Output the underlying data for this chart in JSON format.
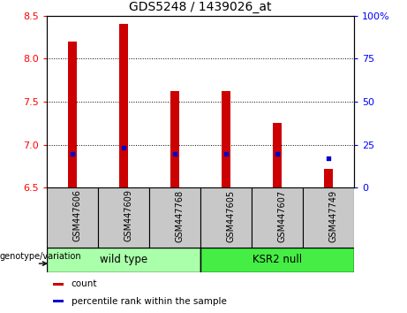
{
  "title": "GDS5248 / 1439026_at",
  "categories": [
    "GSM447606",
    "GSM447609",
    "GSM447768",
    "GSM447605",
    "GSM447607",
    "GSM447749"
  ],
  "bar_values": [
    8.2,
    8.4,
    7.62,
    7.62,
    7.25,
    6.72
  ],
  "percentile_values": [
    6.89,
    6.97,
    6.89,
    6.89,
    6.89,
    6.84
  ],
  "ylim_left": [
    6.5,
    8.5
  ],
  "ylim_right": [
    0,
    100
  ],
  "yticks_left": [
    6.5,
    7.0,
    7.5,
    8.0,
    8.5
  ],
  "yticks_right": [
    0,
    25,
    50,
    75,
    100
  ],
  "bar_color": "#cc0000",
  "percentile_color": "#0000cc",
  "bar_width": 0.18,
  "groups": [
    {
      "label": "wild type",
      "indices": [
        0,
        1,
        2
      ],
      "color": "#aaffaa"
    },
    {
      "label": "KSR2 null",
      "indices": [
        3,
        4,
        5
      ],
      "color": "#44ee44"
    }
  ],
  "group_label": "genotype/variation",
  "legend_items": [
    {
      "label": "count",
      "color": "#cc0000"
    },
    {
      "label": "percentile rank within the sample",
      "color": "#0000cc"
    }
  ],
  "bg_color_plot": "#ffffff",
  "xtick_bg_color": "#c8c8c8",
  "title_fontsize": 10,
  "tick_fontsize": 8,
  "label_fontsize": 8
}
